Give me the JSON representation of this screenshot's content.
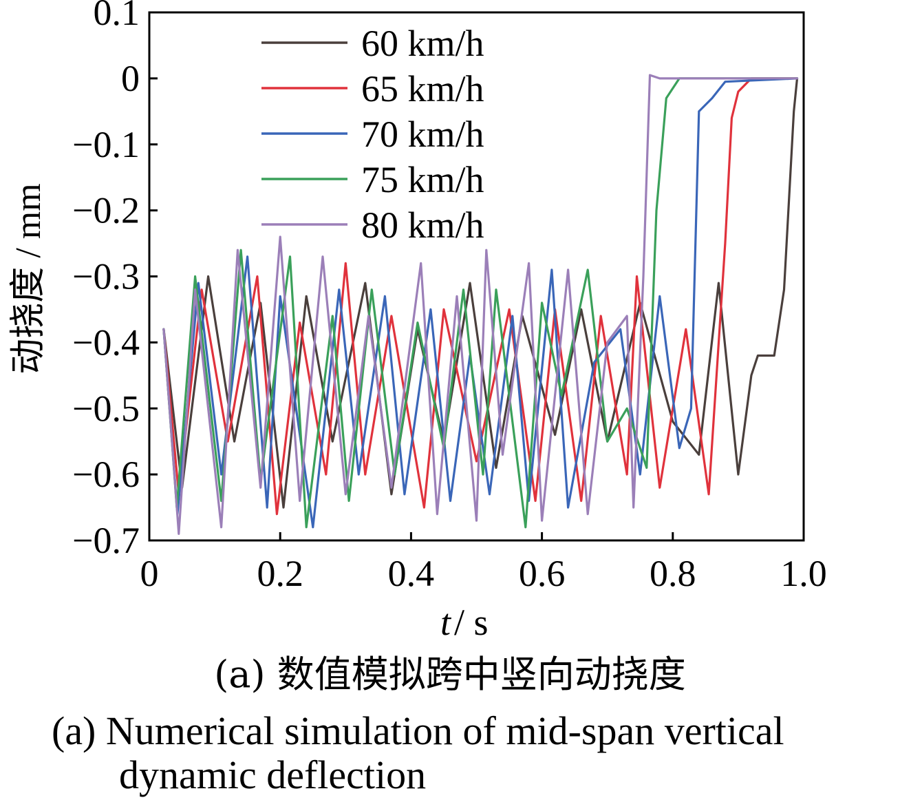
{
  "chart_data": {
    "type": "line",
    "xlabel_italic": "t",
    "xlabel_unit": " / s",
    "ylabel": "动挠度 / mm",
    "xlim": [
      0,
      1.0
    ],
    "ylim": [
      -0.7,
      0.1
    ],
    "xticks": [
      "0",
      "0.2",
      "0.4",
      "0.6",
      "0.8",
      "1.0"
    ],
    "xtick_values": [
      0,
      0.2,
      0.4,
      0.6,
      0.8,
      1.0
    ],
    "yticks": [
      "0.1",
      "0",
      "−0.1",
      "−0.2",
      "−0.3",
      "−0.4",
      "−0.5",
      "−0.6",
      "−0.7"
    ],
    "ytick_values": [
      0.1,
      0,
      -0.1,
      -0.2,
      -0.3,
      -0.4,
      -0.5,
      -0.6,
      -0.7
    ],
    "legend_position": "top-left",
    "grid": false,
    "series": [
      {
        "name": "60 km/h",
        "color": "#4a3f3c",
        "points": [
          [
            0.022,
            -0.38
          ],
          [
            0.05,
            -0.62
          ],
          [
            0.09,
            -0.3
          ],
          [
            0.13,
            -0.55
          ],
          [
            0.17,
            -0.34
          ],
          [
            0.205,
            -0.65
          ],
          [
            0.24,
            -0.33
          ],
          [
            0.28,
            -0.55
          ],
          [
            0.33,
            -0.31
          ],
          [
            0.37,
            -0.63
          ],
          [
            0.41,
            -0.38
          ],
          [
            0.45,
            -0.55
          ],
          [
            0.49,
            -0.31
          ],
          [
            0.53,
            -0.59
          ],
          [
            0.57,
            -0.36
          ],
          [
            0.62,
            -0.54
          ],
          [
            0.66,
            -0.35
          ],
          [
            0.7,
            -0.55
          ],
          [
            0.75,
            -0.34
          ],
          [
            0.8,
            -0.52
          ],
          [
            0.84,
            -0.57
          ],
          [
            0.87,
            -0.31
          ],
          [
            0.9,
            -0.6
          ],
          [
            0.92,
            -0.45
          ],
          [
            0.93,
            -0.42
          ],
          [
            0.955,
            -0.42
          ],
          [
            0.97,
            -0.32
          ],
          [
            0.985,
            -0.05
          ],
          [
            0.99,
            0.0
          ]
        ]
      },
      {
        "name": "65 km/h",
        "color": "#e0323c",
        "points": [
          [
            0.022,
            -0.38
          ],
          [
            0.045,
            -0.63
          ],
          [
            0.08,
            -0.32
          ],
          [
            0.12,
            -0.55
          ],
          [
            0.165,
            -0.3
          ],
          [
            0.195,
            -0.66
          ],
          [
            0.23,
            -0.37
          ],
          [
            0.27,
            -0.6
          ],
          [
            0.3,
            -0.28
          ],
          [
            0.33,
            -0.6
          ],
          [
            0.37,
            -0.36
          ],
          [
            0.42,
            -0.65
          ],
          [
            0.45,
            -0.35
          ],
          [
            0.5,
            -0.58
          ],
          [
            0.55,
            -0.35
          ],
          [
            0.59,
            -0.64
          ],
          [
            0.62,
            -0.35
          ],
          [
            0.66,
            -0.64
          ],
          [
            0.69,
            -0.36
          ],
          [
            0.73,
            -0.6
          ],
          [
            0.745,
            -0.3
          ],
          [
            0.78,
            -0.62
          ],
          [
            0.82,
            -0.38
          ],
          [
            0.855,
            -0.63
          ],
          [
            0.88,
            -0.25
          ],
          [
            0.89,
            -0.06
          ],
          [
            0.9,
            -0.02
          ],
          [
            0.92,
            0.0
          ],
          [
            0.99,
            0.0
          ]
        ]
      },
      {
        "name": "70 km/h",
        "color": "#3a66b8",
        "points": [
          [
            0.022,
            -0.38
          ],
          [
            0.043,
            -0.66
          ],
          [
            0.075,
            -0.31
          ],
          [
            0.11,
            -0.6
          ],
          [
            0.15,
            -0.27
          ],
          [
            0.18,
            -0.65
          ],
          [
            0.2,
            -0.33
          ],
          [
            0.25,
            -0.68
          ],
          [
            0.29,
            -0.32
          ],
          [
            0.32,
            -0.6
          ],
          [
            0.36,
            -0.33
          ],
          [
            0.39,
            -0.63
          ],
          [
            0.43,
            -0.35
          ],
          [
            0.46,
            -0.64
          ],
          [
            0.49,
            -0.42
          ],
          [
            0.52,
            -0.63
          ],
          [
            0.555,
            -0.36
          ],
          [
            0.58,
            -0.64
          ],
          [
            0.615,
            -0.29
          ],
          [
            0.64,
            -0.65
          ],
          [
            0.68,
            -0.43
          ],
          [
            0.72,
            -0.38
          ],
          [
            0.75,
            -0.6
          ],
          [
            0.78,
            -0.33
          ],
          [
            0.81,
            -0.56
          ],
          [
            0.828,
            -0.5
          ],
          [
            0.84,
            -0.05
          ],
          [
            0.86,
            -0.03
          ],
          [
            0.88,
            -0.005
          ],
          [
            0.99,
            0.0
          ]
        ]
      },
      {
        "name": "75 km/h",
        "color": "#3aa05a",
        "points": [
          [
            0.022,
            -0.38
          ],
          [
            0.042,
            -0.65
          ],
          [
            0.07,
            -0.3
          ],
          [
            0.11,
            -0.64
          ],
          [
            0.14,
            -0.26
          ],
          [
            0.17,
            -0.61
          ],
          [
            0.215,
            -0.27
          ],
          [
            0.24,
            -0.68
          ],
          [
            0.28,
            -0.36
          ],
          [
            0.305,
            -0.64
          ],
          [
            0.34,
            -0.32
          ],
          [
            0.375,
            -0.6
          ],
          [
            0.41,
            -0.37
          ],
          [
            0.45,
            -0.56
          ],
          [
            0.48,
            -0.32
          ],
          [
            0.51,
            -0.6
          ],
          [
            0.53,
            -0.32
          ],
          [
            0.575,
            -0.68
          ],
          [
            0.6,
            -0.34
          ],
          [
            0.63,
            -0.48
          ],
          [
            0.67,
            -0.29
          ],
          [
            0.7,
            -0.55
          ],
          [
            0.73,
            -0.5
          ],
          [
            0.76,
            -0.59
          ],
          [
            0.775,
            -0.2
          ],
          [
            0.79,
            -0.03
          ],
          [
            0.81,
            0.0
          ],
          [
            0.99,
            0.0
          ]
        ]
      },
      {
        "name": "80 km/h",
        "color": "#9b7fb8",
        "points": [
          [
            0.022,
            -0.38
          ],
          [
            0.045,
            -0.69
          ],
          [
            0.07,
            -0.32
          ],
          [
            0.11,
            -0.68
          ],
          [
            0.135,
            -0.26
          ],
          [
            0.17,
            -0.62
          ],
          [
            0.2,
            -0.24
          ],
          [
            0.23,
            -0.64
          ],
          [
            0.265,
            -0.27
          ],
          [
            0.3,
            -0.63
          ],
          [
            0.335,
            -0.36
          ],
          [
            0.37,
            -0.62
          ],
          [
            0.415,
            -0.28
          ],
          [
            0.44,
            -0.66
          ],
          [
            0.47,
            -0.33
          ],
          [
            0.5,
            -0.67
          ],
          [
            0.515,
            -0.26
          ],
          [
            0.54,
            -0.57
          ],
          [
            0.58,
            -0.28
          ],
          [
            0.6,
            -0.67
          ],
          [
            0.64,
            -0.29
          ],
          [
            0.67,
            -0.66
          ],
          [
            0.7,
            -0.4
          ],
          [
            0.73,
            -0.36
          ],
          [
            0.74,
            -0.65
          ],
          [
            0.755,
            -0.3
          ],
          [
            0.765,
            0.005
          ],
          [
            0.78,
            0.0
          ],
          [
            0.99,
            0.0
          ]
        ]
      }
    ]
  },
  "caption_cn": "(a)  数值模拟跨中竖向动挠度",
  "caption_en_line1": "(a)  Numerical simulation of mid-span vertical",
  "caption_en_line2": "dynamic deflection"
}
